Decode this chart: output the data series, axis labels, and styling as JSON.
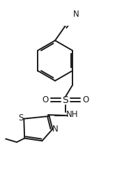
{
  "bg_color": "#ffffff",
  "line_color": "#1a1a1a",
  "line_width": 1.4,
  "font_size": 8.5,
  "figsize": [
    1.88,
    2.6
  ],
  "dpi": 100,
  "xlim": [
    0.0,
    1.0
  ],
  "ylim": [
    0.0,
    1.0
  ]
}
